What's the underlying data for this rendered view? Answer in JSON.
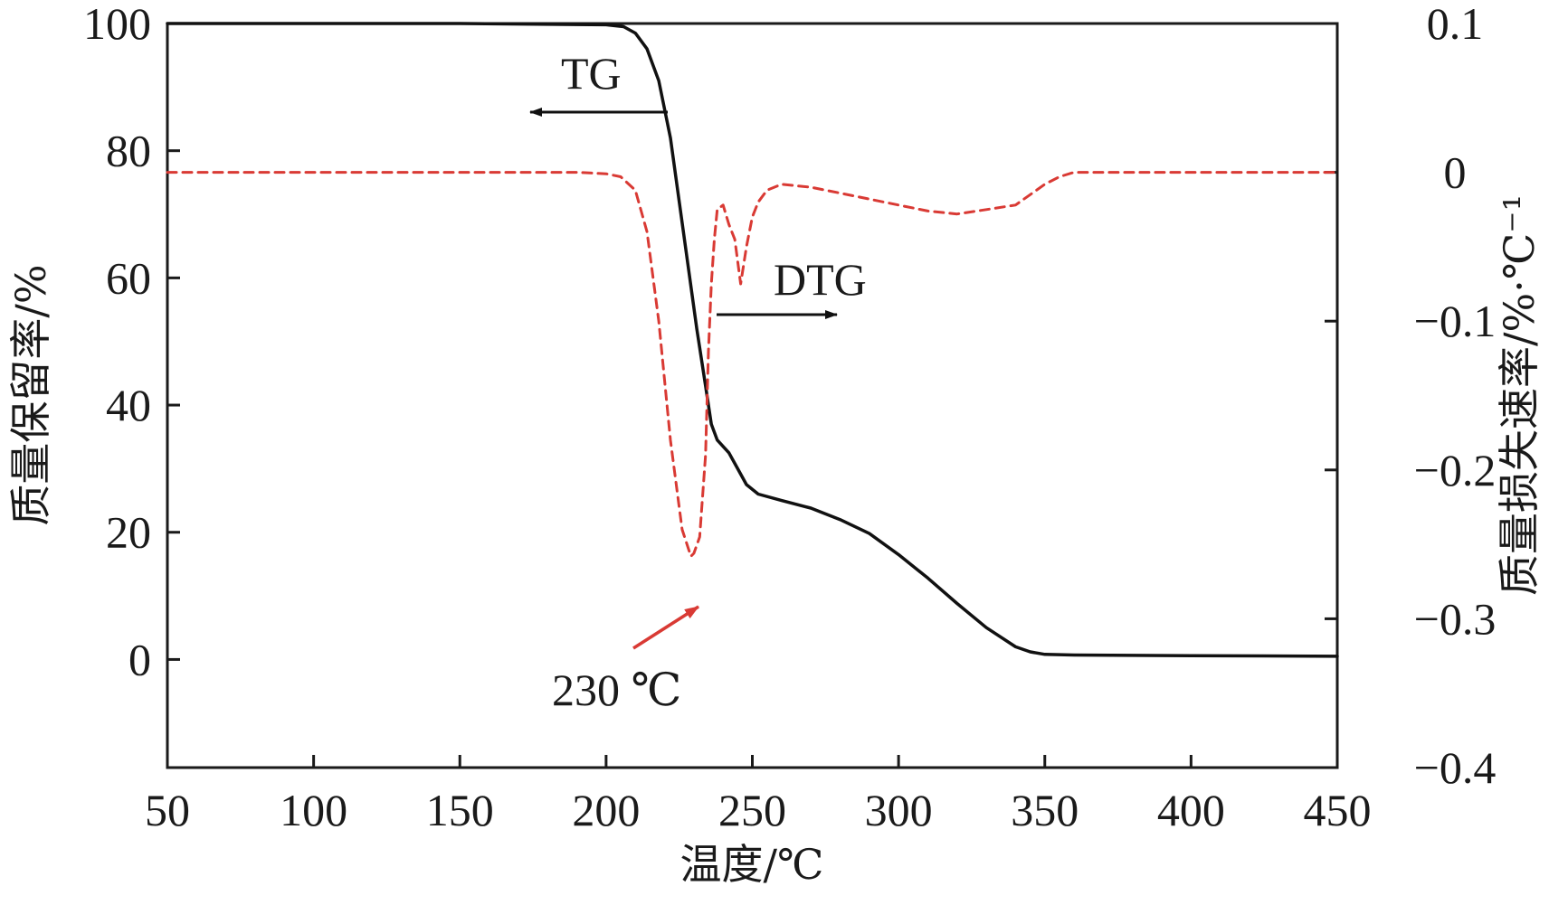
{
  "chart_data": {
    "type": "line",
    "xlabel": "温度/℃",
    "ylabel_left": "质量保留率/%",
    "ylabel_right": "质量损失速率/%·℃⁻¹",
    "xlim": [
      50,
      450
    ],
    "ylim_left": [
      -17,
      100
    ],
    "ylim_right": [
      -0.4,
      0.1
    ],
    "x_ticks": [
      50,
      100,
      150,
      200,
      250,
      300,
      350,
      400,
      450
    ],
    "y_left_ticks": [
      0,
      20,
      40,
      60,
      80,
      100
    ],
    "y_right_ticks": [
      0.1,
      0,
      -0.1,
      -0.2,
      -0.3,
      -0.4
    ],
    "x_tick_labels": [
      "50",
      "100",
      "150",
      "200",
      "250",
      "300",
      "350",
      "400",
      "450"
    ],
    "y_left_tick_labels": [
      "0",
      "20",
      "40",
      "60",
      "80",
      "100"
    ],
    "y_right_tick_labels": [
      "0.1",
      "0",
      "−0.1",
      "−0.2",
      "−0.3",
      "−0.4"
    ],
    "grid": false,
    "series": [
      {
        "name": "TG",
        "axis": "left",
        "color": "#111111",
        "style": "solid",
        "points": [
          [
            50,
            100
          ],
          [
            150,
            100
          ],
          [
            200,
            99.8
          ],
          [
            206,
            99.5
          ],
          [
            210,
            98.5
          ],
          [
            214,
            96
          ],
          [
            218,
            91
          ],
          [
            222,
            82
          ],
          [
            225,
            72
          ],
          [
            228,
            62
          ],
          [
            231,
            52
          ],
          [
            234,
            43
          ],
          [
            236,
            37
          ],
          [
            238,
            34.5
          ],
          [
            242,
            32.5
          ],
          [
            245,
            30
          ],
          [
            248,
            27.5
          ],
          [
            252,
            26
          ],
          [
            260,
            25
          ],
          [
            270,
            23.8
          ],
          [
            280,
            22
          ],
          [
            290,
            19.8
          ],
          [
            300,
            16.5
          ],
          [
            310,
            12.8
          ],
          [
            320,
            8.8
          ],
          [
            330,
            5
          ],
          [
            340,
            2
          ],
          [
            345,
            1.2
          ],
          [
            350,
            0.8
          ],
          [
            360,
            0.7
          ],
          [
            400,
            0.6
          ],
          [
            450,
            0.5
          ]
        ]
      },
      {
        "name": "DTG",
        "axis": "right",
        "color": "#d93a34",
        "style": "dashed",
        "points": [
          [
            50,
            0
          ],
          [
            150,
            0
          ],
          [
            190,
            0
          ],
          [
            200,
            -0.001
          ],
          [
            205,
            -0.003
          ],
          [
            210,
            -0.012
          ],
          [
            214,
            -0.04
          ],
          [
            218,
            -0.1
          ],
          [
            222,
            -0.18
          ],
          [
            226,
            -0.24
          ],
          [
            229,
            -0.258
          ],
          [
            230,
            -0.256
          ],
          [
            232,
            -0.245
          ],
          [
            234,
            -0.19
          ],
          [
            235,
            -0.12
          ],
          [
            236,
            -0.075
          ],
          [
            237,
            -0.045
          ],
          [
            238,
            -0.025
          ],
          [
            240,
            -0.022
          ],
          [
            242,
            -0.035
          ],
          [
            244,
            -0.045
          ],
          [
            246,
            -0.075
          ],
          [
            248,
            -0.05
          ],
          [
            250,
            -0.03
          ],
          [
            252,
            -0.02
          ],
          [
            255,
            -0.012
          ],
          [
            260,
            -0.008
          ],
          [
            270,
            -0.01
          ],
          [
            280,
            -0.014
          ],
          [
            290,
            -0.018
          ],
          [
            300,
            -0.022
          ],
          [
            310,
            -0.026
          ],
          [
            320,
            -0.028
          ],
          [
            330,
            -0.025
          ],
          [
            340,
            -0.022
          ],
          [
            345,
            -0.015
          ],
          [
            350,
            -0.008
          ],
          [
            355,
            -0.003
          ],
          [
            360,
            0
          ],
          [
            400,
            0
          ],
          [
            450,
            0
          ]
        ]
      }
    ],
    "annotations": [
      {
        "text": "TG",
        "arrow": "left",
        "color": "#111111"
      },
      {
        "text": "DTG",
        "arrow": "right",
        "color": "#111111"
      },
      {
        "text": "230 ℃",
        "arrow": "up-right",
        "color": "#d93a34"
      }
    ]
  }
}
